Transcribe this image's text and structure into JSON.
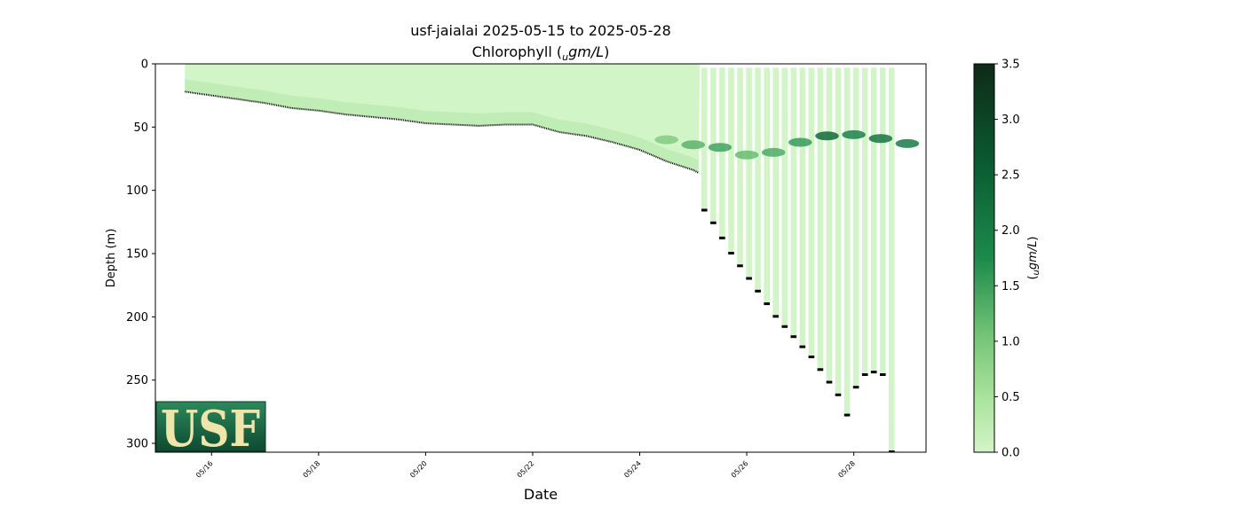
{
  "chart_data": {
    "type": "heatmap",
    "title": "usf-jaialai 2025-05-15 to 2025-05-28",
    "subtitle_prefix": "Chlorophyll (",
    "subtitle_sub": "u",
    "subtitle_unit": "gm/L",
    "subtitle_suffix": ")",
    "xlabel": "Date",
    "ylabel": "Depth (m)",
    "colorbar_label_sub": "u",
    "colorbar_label_unit": "gm/L",
    "x_ticks": [
      "05/16",
      "05/18",
      "05/20",
      "05/22",
      "05/24",
      "05/26",
      "05/28"
    ],
    "x_range_days": [
      -0.05,
      14.35
    ],
    "y_ticks": [
      0,
      50,
      100,
      150,
      200,
      250,
      300
    ],
    "ylim": [
      307,
      0
    ],
    "colorbar_ticks": [
      "0.0",
      "0.5",
      "1.0",
      "1.5",
      "2.0",
      "2.5",
      "3.0",
      "3.5"
    ],
    "colorbar_range": [
      0,
      3.5
    ],
    "colormap": [
      "#d2f5c8",
      "#aae39d",
      "#74c476",
      "#1c8a4c",
      "#0a5a30",
      "#0f2a18"
    ],
    "continuous_profile": {
      "start": "05/15 12:00",
      "end": "05/25 03:00",
      "max_depth_by_day": [
        [
          0.5,
          22
        ],
        [
          1.0,
          25
        ],
        [
          1.5,
          28
        ],
        [
          2.0,
          31
        ],
        [
          2.5,
          35
        ],
        [
          3.0,
          37
        ],
        [
          3.5,
          40
        ],
        [
          4.0,
          42
        ],
        [
          4.5,
          44
        ],
        [
          5.0,
          47
        ],
        [
          5.5,
          48
        ],
        [
          6.0,
          49
        ],
        [
          6.5,
          48
        ],
        [
          7.0,
          48
        ],
        [
          7.5,
          54
        ],
        [
          8.0,
          57
        ],
        [
          8.5,
          62
        ],
        [
          9.0,
          68
        ],
        [
          9.5,
          77
        ],
        [
          10.0,
          84
        ],
        [
          10.5,
          95
        ],
        [
          11.0,
          108
        ],
        [
          11.2,
          116
        ]
      ]
    },
    "profiles": [
      {
        "x": "05/25 05:00",
        "max_depth": 116
      },
      {
        "x": "05/25 09:00",
        "max_depth": 126
      },
      {
        "x": "05/25 13:00",
        "max_depth": 138
      },
      {
        "x": "05/25 17:00",
        "max_depth": 150
      },
      {
        "x": "05/25 21:00",
        "max_depth": 160
      },
      {
        "x": "05/26 01:00",
        "max_depth": 170
      },
      {
        "x": "05/26 05:00",
        "max_depth": 180
      },
      {
        "x": "05/26 09:00",
        "max_depth": 190
      },
      {
        "x": "05/26 13:00",
        "max_depth": 200
      },
      {
        "x": "05/26 17:00",
        "max_depth": 208
      },
      {
        "x": "05/26 21:00",
        "max_depth": 216
      },
      {
        "x": "05/27 01:00",
        "max_depth": 224
      },
      {
        "x": "05/27 05:00",
        "max_depth": 232
      },
      {
        "x": "05/27 09:00",
        "max_depth": 242
      },
      {
        "x": "05/27 13:00",
        "max_depth": 252
      },
      {
        "x": "05/27 17:00",
        "max_depth": 262
      },
      {
        "x": "05/27 21:00",
        "max_depth": 278
      },
      {
        "x": "05/28 01:00",
        "max_depth": 256
      },
      {
        "x": "05/28 05:00",
        "max_depth": 246
      },
      {
        "x": "05/28 09:00",
        "max_depth": 244
      },
      {
        "x": "05/28 13:00",
        "max_depth": 246
      },
      {
        "x": "05/28 17:00",
        "max_depth": 307
      }
    ],
    "chlorophyll_maximum": {
      "description_points": [
        [
          9.5,
          60,
          1.2
        ],
        [
          10.0,
          64,
          1.6
        ],
        [
          10.5,
          66,
          1.8
        ],
        [
          11.0,
          72,
          1.5
        ],
        [
          11.5,
          70,
          1.7
        ],
        [
          12.0,
          62,
          1.9
        ],
        [
          12.5,
          57,
          2.6
        ],
        [
          13.0,
          56,
          2.2
        ],
        [
          13.5,
          59,
          2.4
        ],
        [
          14.0,
          63,
          2.3
        ]
      ]
    },
    "logo_text": "USF"
  }
}
